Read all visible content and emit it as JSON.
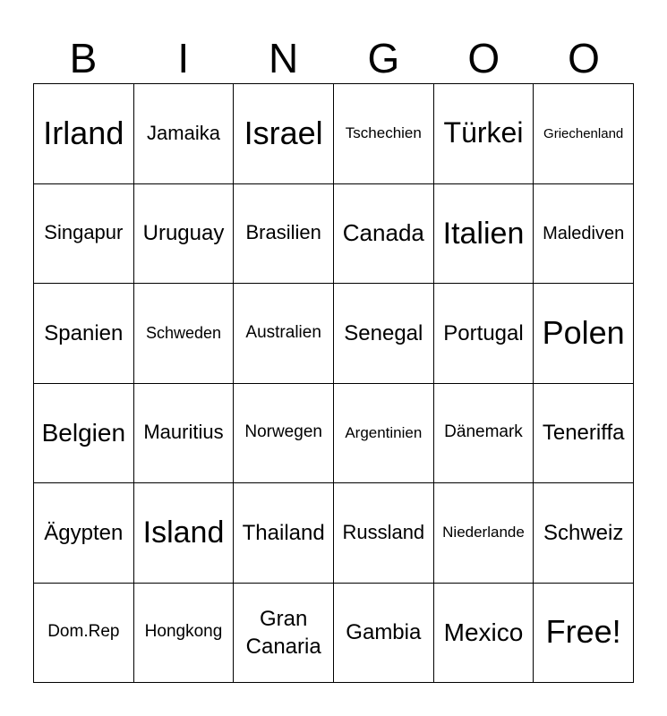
{
  "header": [
    "B",
    "I",
    "N",
    "G",
    "O",
    "O"
  ],
  "cells": [
    "Irland",
    "Jamaika",
    "Israel",
    "Tschechien",
    "Türkei",
    "Griechenland",
    "Singapur",
    "Uruguay",
    "Brasilien",
    "Canada",
    "Italien",
    "Malediven",
    "Spanien",
    "Schweden",
    "Australien",
    "Senegal",
    "Portugal",
    "Polen",
    "Belgien",
    "Mauritius",
    "Norwegen",
    "Argentinien",
    "Dänemark",
    "Teneriffa",
    "Ägypten",
    "Island",
    "Thailand",
    "Russland",
    "Niederlande",
    "Schweiz",
    "Dom.Rep",
    "Hongkong",
    "Gran Canaria",
    "Gambia",
    "Mexico",
    "Free!"
  ]
}
